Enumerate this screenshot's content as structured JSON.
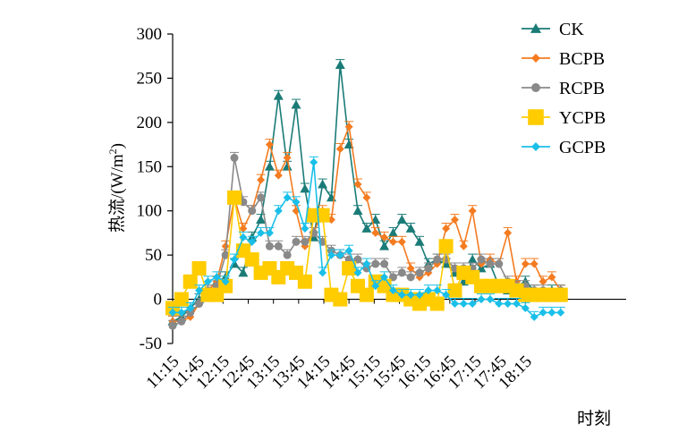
{
  "chart_data": {
    "type": "line",
    "title": "",
    "xlabel": "时刻",
    "ylabel": "热流/(W/m²)",
    "ylabel_main": "热流/(W/m",
    "ylabel_sup": "2",
    "ylabel_close": ")",
    "ylim": [
      -50,
      300
    ],
    "yticks": [
      300,
      250,
      200,
      150,
      100,
      50,
      0,
      -50
    ],
    "xlim": [
      0,
      36
    ],
    "xticks": [
      {
        "label": "11:15",
        "x": 0
      },
      {
        "label": "11:45",
        "x": 2
      },
      {
        "label": "12:15",
        "x": 4
      },
      {
        "label": "12:45",
        "x": 6
      },
      {
        "label": "13:15",
        "x": 8
      },
      {
        "label": "13:45",
        "x": 10
      },
      {
        "label": "14:15",
        "x": 12
      },
      {
        "label": "14:45",
        "x": 14
      },
      {
        "label": "15:15",
        "x": 16
      },
      {
        "label": "15:45",
        "x": 18
      },
      {
        "label": "16:15",
        "x": 20
      },
      {
        "label": "16:45",
        "x": 22
      },
      {
        "label": "17:15",
        "x": 24
      },
      {
        "label": "17:45",
        "x": 26
      },
      {
        "label": "18:15",
        "x": 28
      }
    ],
    "legend_position": "right",
    "grid": false,
    "series": [
      {
        "name": "CK",
        "color": "#1a7b77",
        "marker": "triangle",
        "x": [
          0,
          0.7,
          1.4,
          2.1,
          2.8,
          3.5,
          4.2,
          4.9,
          5.6,
          6.3,
          7,
          7.7,
          8.4,
          9.1,
          9.8,
          10.5,
          11.2,
          11.9,
          12.6,
          13.3,
          14,
          14.7,
          15.4,
          16.1,
          16.8,
          17.5,
          18.2,
          18.9,
          19.6,
          20.3,
          21,
          21.7,
          22.4,
          23.1,
          23.8,
          24.5,
          25.2,
          25.9,
          26.6,
          27.3,
          28,
          28.7,
          29.4,
          30.1,
          30.8
        ],
        "values": [
          -25,
          -20,
          -10,
          0,
          10,
          20,
          25,
          40,
          30,
          70,
          90,
          150,
          230,
          150,
          220,
          125,
          70,
          130,
          115,
          265,
          175,
          100,
          80,
          90,
          60,
          75,
          90,
          80,
          65,
          40,
          45,
          40,
          30,
          20,
          45,
          35,
          40,
          15,
          10,
          15,
          20,
          10,
          5,
          10,
          10
        ]
      },
      {
        "name": "BCPB",
        "color": "#f47b20",
        "marker": "diamond",
        "x": [
          0,
          0.7,
          1.4,
          2.1,
          2.8,
          3.5,
          4.2,
          4.9,
          5.6,
          6.3,
          7,
          7.7,
          8.4,
          9.1,
          9.8,
          10.5,
          11.2,
          11.9,
          12.6,
          13.3,
          14,
          14.7,
          15.4,
          16.1,
          16.8,
          17.5,
          18.2,
          18.9,
          19.6,
          20.3,
          21,
          21.7,
          22.4,
          23.1,
          23.8,
          24.5,
          25.2,
          25.9,
          26.6,
          27.3,
          28,
          28.7,
          29.4,
          30.1,
          30.8
        ],
        "values": [
          -25,
          -25,
          -20,
          -5,
          10,
          20,
          60,
          115,
          80,
          100,
          135,
          175,
          140,
          160,
          100,
          60,
          75,
          100,
          90,
          170,
          195,
          130,
          115,
          75,
          70,
          65,
          65,
          35,
          25,
          30,
          40,
          80,
          90,
          60,
          100,
          40,
          45,
          40,
          75,
          20,
          40,
          40,
          20,
          25,
          10
        ]
      },
      {
        "name": "RCPB",
        "color": "#898989",
        "marker": "circle",
        "x": [
          0,
          0.7,
          1.4,
          2.1,
          2.8,
          3.5,
          4.2,
          4.9,
          5.6,
          6.3,
          7,
          7.7,
          8.4,
          9.1,
          9.8,
          10.5,
          11.2,
          11.9,
          12.6,
          13.3,
          14,
          14.7,
          15.4,
          16.1,
          16.8,
          17.5,
          18.2,
          18.9,
          19.6,
          20.3,
          21,
          21.7,
          22.4,
          23.1,
          23.8,
          24.5,
          25.2,
          25.9,
          26.6,
          27.3,
          28,
          28.7,
          29.4,
          30.1,
          30.8
        ],
        "values": [
          -30,
          -25,
          -15,
          -5,
          10,
          15,
          50,
          160,
          110,
          100,
          115,
          60,
          60,
          50,
          65,
          65,
          75,
          65,
          55,
          50,
          45,
          45,
          35,
          40,
          40,
          25,
          30,
          25,
          30,
          35,
          45,
          45,
          35,
          35,
          35,
          45,
          40,
          40,
          20,
          15,
          15,
          10,
          10,
          5,
          10
        ]
      },
      {
        "name": "YCPB",
        "color": "#ffcc00",
        "marker": "square",
        "x": [
          0,
          0.7,
          1.4,
          2.1,
          2.8,
          3.5,
          4.2,
          4.9,
          5.6,
          6.3,
          7,
          7.7,
          8.4,
          9.1,
          9.8,
          10.5,
          11.2,
          11.9,
          12.6,
          13.3,
          14,
          14.7,
          15.4,
          16.1,
          16.8,
          17.5,
          18.2,
          18.9,
          19.6,
          20.3,
          21,
          21.7,
          22.4,
          23.1,
          23.8,
          24.5,
          25.2,
          25.9,
          26.6,
          27.3,
          28,
          28.7,
          29.4,
          30.1,
          30.8
        ],
        "values": [
          -10,
          0,
          20,
          35,
          5,
          5,
          15,
          115,
          55,
          45,
          30,
          35,
          25,
          35,
          30,
          20,
          95,
          95,
          5,
          0,
          35,
          15,
          5,
          20,
          15,
          5,
          5,
          0,
          -5,
          0,
          -5,
          60,
          10,
          30,
          25,
          15,
          15,
          15,
          15,
          10,
          5,
          5,
          5,
          5,
          5
        ]
      },
      {
        "name": "GCPB",
        "color": "#19bfe8",
        "marker": "diamond",
        "x": [
          0,
          0.7,
          1.4,
          2.1,
          2.8,
          3.5,
          4.2,
          4.9,
          5.6,
          6.3,
          7,
          7.7,
          8.4,
          9.1,
          9.8,
          10.5,
          11.2,
          11.9,
          12.6,
          13.3,
          14,
          14.7,
          15.4,
          16.1,
          16.8,
          17.5,
          18.2,
          18.9,
          19.6,
          20.3,
          21,
          21.7,
          22.4,
          23.1,
          23.8,
          24.5,
          25.2,
          25.9,
          26.6,
          27.3,
          28,
          28.7,
          29.4,
          30.1,
          30.8
        ],
        "values": [
          -15,
          -15,
          -10,
          10,
          20,
          25,
          20,
          45,
          70,
          65,
          75,
          75,
          100,
          115,
          110,
          80,
          155,
          30,
          50,
          50,
          55,
          30,
          40,
          15,
          25,
          10,
          5,
          5,
          5,
          10,
          10,
          5,
          -5,
          -5,
          -5,
          0,
          0,
          -5,
          -5,
          -5,
          -10,
          -20,
          -15,
          -15,
          -15
        ]
      }
    ]
  }
}
